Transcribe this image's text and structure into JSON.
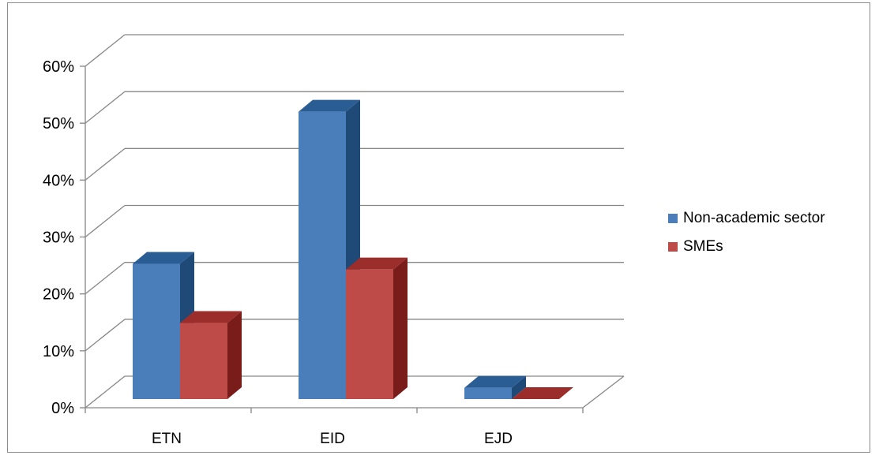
{
  "chart_data": {
    "type": "bar",
    "categories": [
      "ETN",
      "EID",
      "EJD"
    ],
    "series": [
      {
        "name": "Non-academic sector",
        "values": [
          0.24,
          0.51,
          0.02
        ],
        "color": "#4a7ebb",
        "top_color": "#2a5d94",
        "side_color": "#1f4a78"
      },
      {
        "name": "SMEs",
        "values": [
          0.135,
          0.23,
          0.0
        ],
        "color": "#be4b48",
        "top_color": "#9b2d2a",
        "side_color": "#7a1c1a"
      }
    ],
    "ylim": [
      0,
      0.6
    ],
    "yticks": [
      0,
      0.1,
      0.2,
      0.3,
      0.4,
      0.5,
      0.6
    ],
    "ytick_labels": [
      "0%",
      "10%",
      "20%",
      "30%",
      "40%",
      "50%",
      "60%"
    ],
    "grid": true,
    "legend_position": "right",
    "title": "",
    "xlabel": "",
    "ylabel": ""
  }
}
